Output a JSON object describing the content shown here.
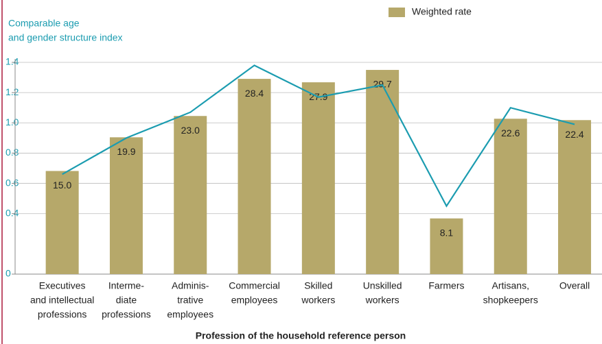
{
  "chart_data": {
    "type": "bar",
    "y_label": [
      "Comparable age",
      "and gender structure index"
    ],
    "x_label": "Profession of the household reference person",
    "categories": [
      [
        "Executives",
        "and intellectual",
        "professions"
      ],
      [
        "Interme-",
        "diate",
        "professions"
      ],
      [
        "Adminis-",
        "trative",
        "employees"
      ],
      [
        "Commercial",
        "employees"
      ],
      [
        "Skilled",
        "workers"
      ],
      [
        "Unskilled",
        "workers"
      ],
      [
        "Farmers"
      ],
      [
        "Artisans,",
        "shopkeepers"
      ],
      [
        "Overall"
      ]
    ],
    "series": [
      {
        "name": "Weighted rate",
        "type": "bar",
        "axis": "y2",
        "color": "#b6a86a",
        "values": [
          15.0,
          19.9,
          23.0,
          28.4,
          27.9,
          29.7,
          8.1,
          22.6,
          22.4
        ],
        "value_labels": [
          "15.0",
          "19.9",
          "23.0",
          "28.4",
          "27.9",
          "29.7",
          "8.1",
          "22.6",
          "22.4"
        ]
      },
      {
        "type": "line",
        "color": "#1b9cb0",
        "values": [
          0.66,
          0.9,
          1.07,
          1.38,
          1.17,
          1.25,
          0.45,
          1.1,
          0.99
        ]
      }
    ],
    "ylim": [
      0,
      1.4
    ],
    "yticks": [
      0,
      {
        "value": 0.4,
        "label": "0.4"
      },
      {
        "value": 0.6,
        "label": "0.6"
      },
      {
        "value": 0.8,
        "label": "0.8"
      },
      {
        "value": 1.0,
        "label": "1.0"
      },
      {
        "value": 1.2,
        "label": "1.2"
      },
      {
        "value": 1.4,
        "label": "1.4"
      }
    ],
    "y2lim": [
      0,
      30.8
    ],
    "grid": true,
    "legend": "top-right"
  }
}
